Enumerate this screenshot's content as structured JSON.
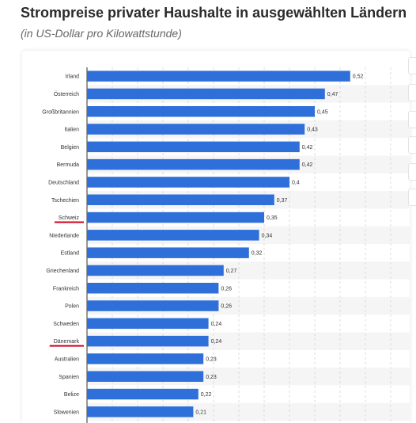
{
  "title": "Strompreise privater Haushalte in ausgewählten Ländern",
  "subtitle": "(in US-Dollar pro Kilowattstunde)",
  "colors": {
    "bar": "#2f6fd9",
    "stripe": "#f5f5f5",
    "grid": "#d6d6d6",
    "underline": "#d0021b"
  },
  "chart_data": {
    "type": "bar",
    "orientation": "horizontal",
    "categories": [
      "Irland",
      "Österreich",
      "Großbritannien",
      "Italien",
      "Belgien",
      "Bermuda",
      "Deutschland",
      "Tschechien",
      "Schweiz",
      "Niederlande",
      "Estland",
      "Griechenland",
      "Frankreich",
      "Polen",
      "Schweden",
      "Dänemark",
      "Australien",
      "Spanien",
      "Belize",
      "Slowenien"
    ],
    "values": [
      0.52,
      0.47,
      0.45,
      0.43,
      0.42,
      0.42,
      0.4,
      0.37,
      0.35,
      0.34,
      0.32,
      0.27,
      0.26,
      0.26,
      0.24,
      0.24,
      0.23,
      0.23,
      0.22,
      0.21
    ],
    "value_labels": [
      "0,52",
      "0,47",
      "0,45",
      "0,43",
      "0,42",
      "0,42",
      "0,4",
      "0,37",
      "0,35",
      "0,34",
      "0,32",
      "0,27",
      "0,26",
      "0,26",
      "0,24",
      "0,24",
      "0,23",
      "0,23",
      "0,22",
      "0,21"
    ],
    "xlim": [
      0,
      0.6
    ],
    "grid": true,
    "highlighted_categories": [
      "Schweiz",
      "Dänemark"
    ]
  }
}
